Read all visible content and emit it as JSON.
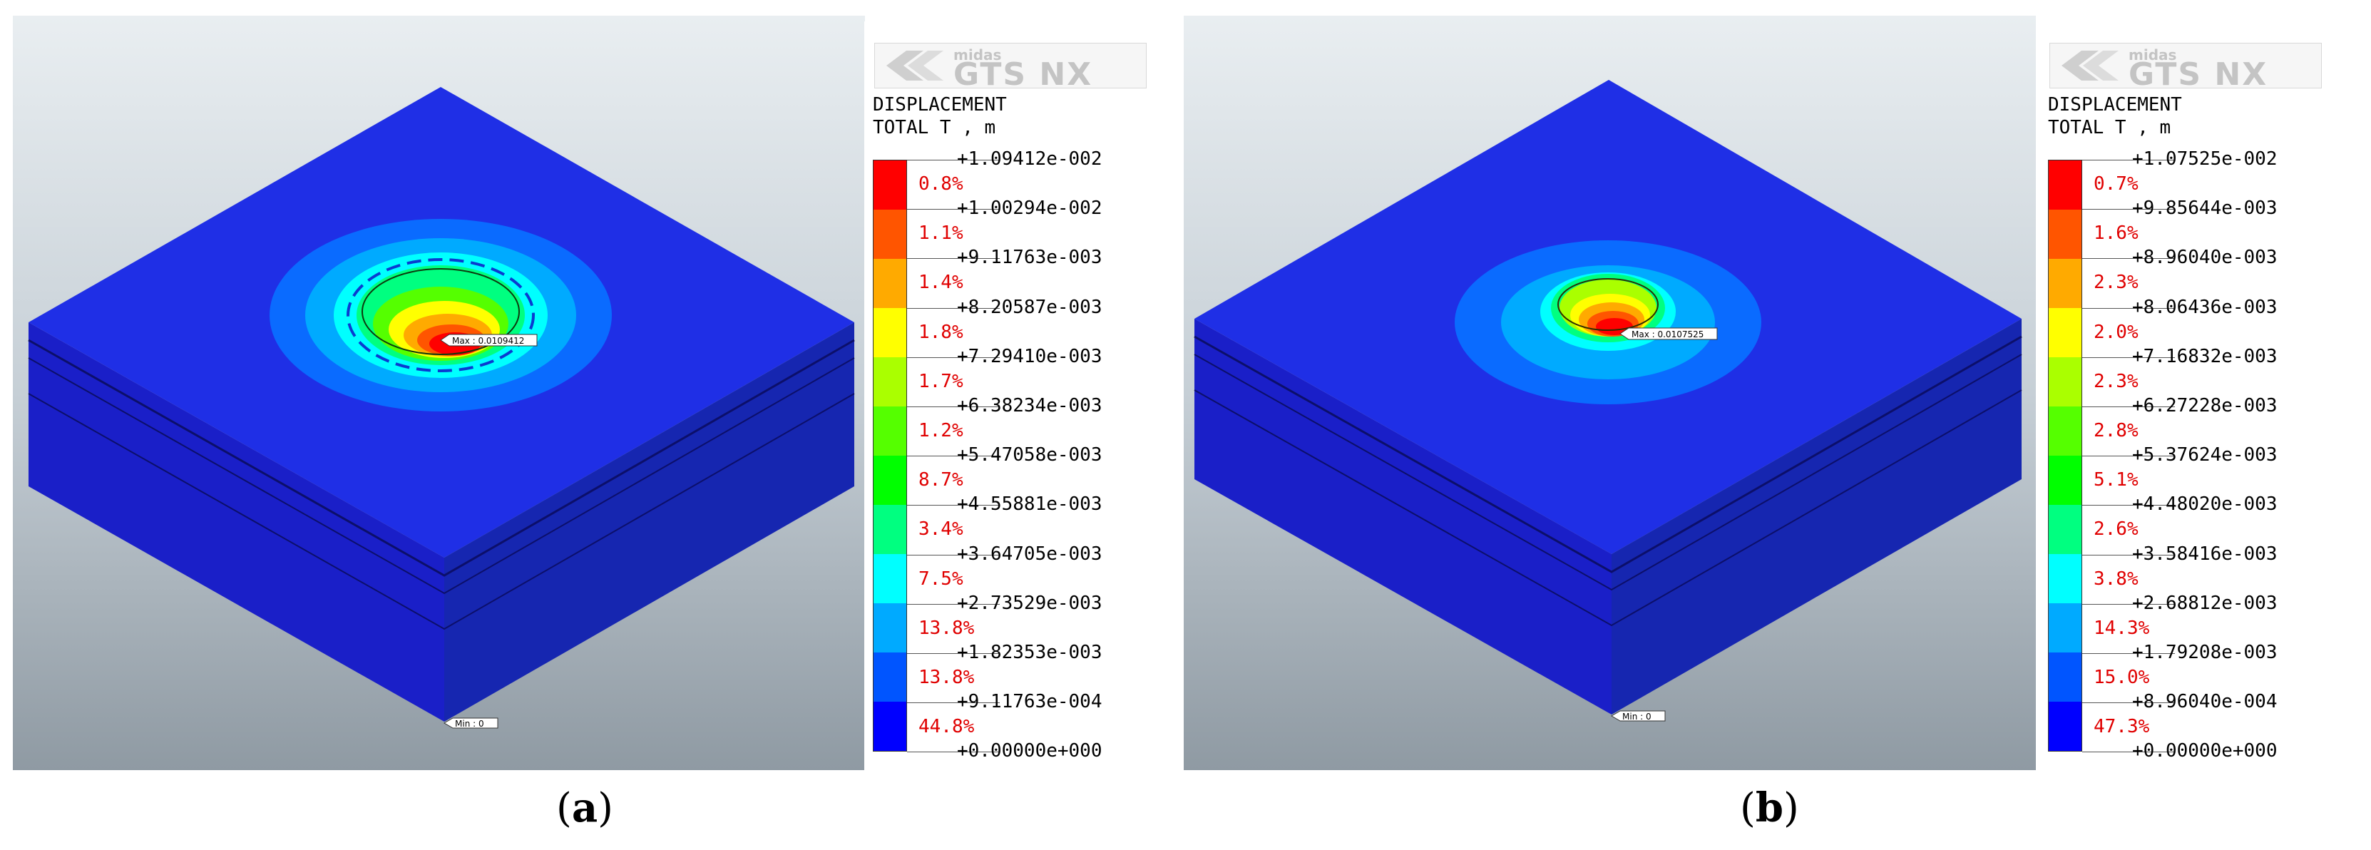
{
  "panels": [
    {
      "id": "a",
      "caption": "a",
      "legend": {
        "logo_small": "midas",
        "logo_big_left": "GTS",
        "logo_big_right": "NX",
        "title_line1": "DISPLACEMENT",
        "title_line2": "TOTAL T , m",
        "ticks": [
          "+1.09412e-002",
          "+1.00294e-002",
          "+9.11763e-003",
          "+8.20587e-003",
          "+7.29410e-003",
          "+6.38234e-003",
          "+5.47058e-003",
          "+4.55881e-003",
          "+3.64705e-003",
          "+2.73529e-003",
          "+1.82353e-003",
          "+9.11763e-004",
          "+0.00000e+000"
        ],
        "percents": [
          "0.8%",
          "1.1%",
          "1.4%",
          "1.8%",
          "1.7%",
          "1.2%",
          "8.7%",
          "3.4%",
          "7.5%",
          "13.8%",
          "13.8%",
          "44.8%"
        ]
      },
      "max_label": "Max : 0.0109412",
      "min_label": "Min : 0"
    },
    {
      "id": "b",
      "caption": "b",
      "legend": {
        "logo_small": "midas",
        "logo_big_left": "GTS",
        "logo_big_right": "NX",
        "title_line1": "DISPLACEMENT",
        "title_line2": "TOTAL T , m",
        "ticks": [
          "+1.07525e-002",
          "+9.85644e-003",
          "+8.96040e-003",
          "+8.06436e-003",
          "+7.16832e-003",
          "+6.27228e-003",
          "+5.37624e-003",
          "+4.48020e-003",
          "+3.58416e-003",
          "+2.68812e-003",
          "+1.79208e-003",
          "+8.96040e-004",
          "+0.00000e+000"
        ],
        "percents": [
          "0.7%",
          "1.6%",
          "2.3%",
          "2.0%",
          "2.3%",
          "2.8%",
          "5.1%",
          "2.6%",
          "3.8%",
          "14.3%",
          "15.0%",
          "47.3%"
        ]
      },
      "max_label": "Max : 0.0107525",
      "min_label": "Min : 0"
    }
  ],
  "colors": {
    "bands": [
      "#ff0000",
      "#ff5500",
      "#ffaa00",
      "#ffff00",
      "#aaff00",
      "#55ff00",
      "#00ff00",
      "#00ff80",
      "#00ffff",
      "#00aaff",
      "#0055ff",
      "#0000ff"
    ],
    "block_top": "#1f2fe6",
    "block_side": "#1a1fc8",
    "block_front": "#1626b0"
  }
}
